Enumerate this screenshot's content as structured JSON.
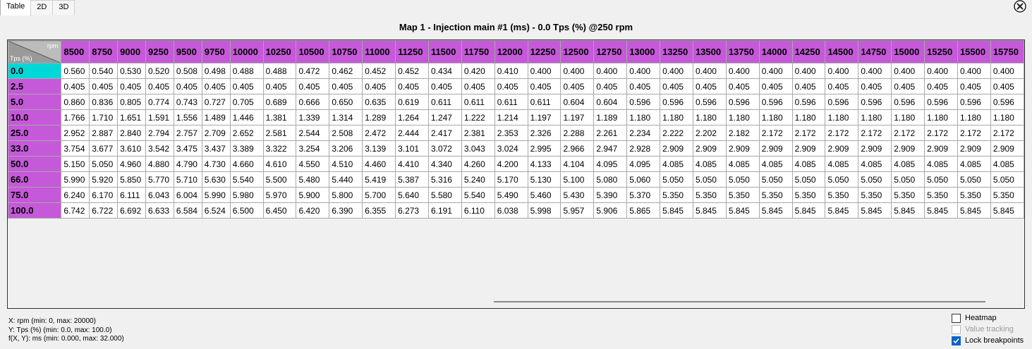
{
  "tabs": [
    "Table",
    "2D",
    "3D"
  ],
  "title": "Map 1 - Injection main #1 (ms) - 0.0 Tps (%) @250 rpm",
  "table": {
    "x_axis_label": "rpm",
    "y_axis_label": "Tps (%)",
    "columns": [
      8500,
      8750,
      9000,
      9250,
      9500,
      9750,
      10000,
      10250,
      10500,
      10750,
      11000,
      11250,
      11500,
      11750,
      12000,
      12250,
      12500,
      12750,
      13000,
      13250,
      13500,
      13750,
      14000,
      14250,
      14500,
      14750,
      15000,
      15250,
      15500,
      15750
    ],
    "rows": [
      {
        "label": "0.0",
        "values": [
          "0.560",
          "0.540",
          "0.530",
          "0.520",
          "0.508",
          "0.498",
          "0.488",
          "0.488",
          "0.472",
          "0.462",
          "0.452",
          "0.452",
          "0.434",
          "0.420",
          "0.410",
          "0.400",
          "0.400",
          "0.400",
          "0.400",
          "0.400",
          "0.400",
          "0.400",
          "0.400",
          "0.400",
          "0.400",
          "0.400",
          "0.400",
          "0.400",
          "0.400",
          "0.400"
        ]
      },
      {
        "label": "2.5",
        "values": [
          "0.405",
          "0.405",
          "0.405",
          "0.405",
          "0.405",
          "0.405",
          "0.405",
          "0.405",
          "0.405",
          "0.405",
          "0.405",
          "0.405",
          "0.405",
          "0.405",
          "0.405",
          "0.405",
          "0.405",
          "0.405",
          "0.405",
          "0.405",
          "0.405",
          "0.405",
          "0.405",
          "0.405",
          "0.405",
          "0.405",
          "0.405",
          "0.405",
          "0.405",
          "0.405"
        ]
      },
      {
        "label": "5.0",
        "values": [
          "0.860",
          "0.836",
          "0.805",
          "0.774",
          "0.743",
          "0.727",
          "0.705",
          "0.689",
          "0.666",
          "0.650",
          "0.635",
          "0.619",
          "0.611",
          "0.611",
          "0.611",
          "0.611",
          "0.604",
          "0.604",
          "0.596",
          "0.596",
          "0.596",
          "0.596",
          "0.596",
          "0.596",
          "0.596",
          "0.596",
          "0.596",
          "0.596",
          "0.596",
          "0.596"
        ]
      },
      {
        "label": "10.0",
        "values": [
          "1.766",
          "1.710",
          "1.651",
          "1.591",
          "1.556",
          "1.489",
          "1.446",
          "1.381",
          "1.339",
          "1.314",
          "1.289",
          "1.264",
          "1.247",
          "1.222",
          "1.214",
          "1.197",
          "1.197",
          "1.189",
          "1.180",
          "1.180",
          "1.180",
          "1.180",
          "1.180",
          "1.180",
          "1.180",
          "1.180",
          "1.180",
          "1.180",
          "1.180",
          "1.180"
        ]
      },
      {
        "label": "25.0",
        "values": [
          "2.952",
          "2.887",
          "2.840",
          "2.794",
          "2.757",
          "2.709",
          "2.652",
          "2.581",
          "2.544",
          "2.508",
          "2.472",
          "2.444",
          "2.417",
          "2.381",
          "2.353",
          "2.326",
          "2.288",
          "2.261",
          "2.234",
          "2.222",
          "2.202",
          "2.182",
          "2.172",
          "2.172",
          "2.172",
          "2.172",
          "2.172",
          "2.172",
          "2.172",
          "2.172"
        ]
      },
      {
        "label": "33.0",
        "values": [
          "3.754",
          "3.677",
          "3.610",
          "3.542",
          "3.475",
          "3.437",
          "3.389",
          "3.322",
          "3.254",
          "3.206",
          "3.139",
          "3.101",
          "3.072",
          "3.043",
          "3.024",
          "2.995",
          "2.966",
          "2.947",
          "2.928",
          "2.909",
          "2.909",
          "2.909",
          "2.909",
          "2.909",
          "2.909",
          "2.909",
          "2.909",
          "2.909",
          "2.909",
          "2.909"
        ]
      },
      {
        "label": "50.0",
        "values": [
          "5.150",
          "5.050",
          "4.960",
          "4.880",
          "4.790",
          "4.730",
          "4.660",
          "4.610",
          "4.550",
          "4.510",
          "4.460",
          "4.410",
          "4.340",
          "4.260",
          "4.200",
          "4.133",
          "4.104",
          "4.095",
          "4.095",
          "4.085",
          "4.085",
          "4.085",
          "4.085",
          "4.085",
          "4.085",
          "4.085",
          "4.085",
          "4.085",
          "4.085",
          "4.085"
        ]
      },
      {
        "label": "66.0",
        "values": [
          "5.990",
          "5.920",
          "5.850",
          "5.770",
          "5.710",
          "5.630",
          "5.540",
          "5.500",
          "5.480",
          "5.440",
          "5.419",
          "5.387",
          "5.316",
          "5.240",
          "5.170",
          "5.130",
          "5.100",
          "5.080",
          "5.060",
          "5.050",
          "5.050",
          "5.050",
          "5.050",
          "5.050",
          "5.050",
          "5.050",
          "5.050",
          "5.050",
          "5.050",
          "5.050"
        ]
      },
      {
        "label": "75.0",
        "values": [
          "6.240",
          "6.170",
          "6.111",
          "6.043",
          "6.004",
          "5.990",
          "5.980",
          "5.970",
          "5.900",
          "5.800",
          "5.700",
          "5.640",
          "5.580",
          "5.540",
          "5.490",
          "5.460",
          "5.430",
          "5.390",
          "5.370",
          "5.350",
          "5.350",
          "5.350",
          "5.350",
          "5.350",
          "5.350",
          "5.350",
          "5.350",
          "5.350",
          "5.350",
          "5.350"
        ]
      },
      {
        "label": "100.0",
        "values": [
          "6.742",
          "6.722",
          "6.692",
          "6.633",
          "6.584",
          "6.524",
          "6.500",
          "6.450",
          "6.420",
          "6.390",
          "6.355",
          "6.273",
          "6.191",
          "6.110",
          "6.038",
          "5.998",
          "5.957",
          "5.906",
          "5.865",
          "5.845",
          "5.845",
          "5.845",
          "5.845",
          "5.845",
          "5.845",
          "5.845",
          "5.845",
          "5.845",
          "5.845",
          "5.845"
        ]
      }
    ]
  },
  "info": [
    "X: rpm (min: 0, max: 20000)",
    "Y: Tps (%) (min: 0.0, max: 100.0)",
    "f(X, Y): ms (min: 0.000, max: 32.000)"
  ],
  "options": [
    {
      "label": "Heatmap",
      "checked": false,
      "enabled": true
    },
    {
      "label": "Value tracking",
      "checked": false,
      "enabled": false
    },
    {
      "label": "Lock breakpoints",
      "checked": true,
      "enabled": true
    }
  ]
}
